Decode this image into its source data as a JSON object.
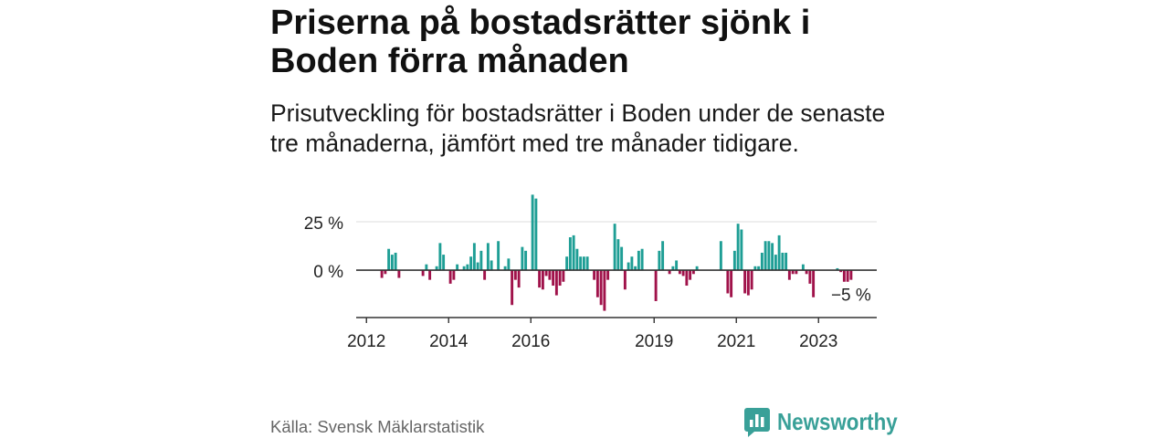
{
  "colors": {
    "positive": "#1e9e95",
    "negative": "#a0124a",
    "logo": "#39a098",
    "grid": "#dddddd",
    "axis": "#333333",
    "muted_text": "#666666"
  },
  "chart_data": {
    "type": "bar",
    "title": "Priserna på bostadsrätter sjönk i Boden förra månaden",
    "subtitle": "Prisutveckling för bostadsrätter i Boden under de senaste tre månaderna, jämfört med tre månader tidigare.",
    "xlabel": "",
    "ylabel": "",
    "x_start": 2012,
    "months_per_bar": 1,
    "xlim": [
      2011.75,
      2024.4167
    ],
    "ylim": [
      -24.5,
      42
    ],
    "grid": true,
    "yticks": [
      {
        "value": 0,
        "label": "0 %"
      },
      {
        "value": 25,
        "label": "25 %"
      }
    ],
    "xticks": [
      {
        "x": 2012,
        "label": "2012"
      },
      {
        "x": 2014,
        "label": "2014"
      },
      {
        "x": 2016,
        "label": "2016"
      },
      {
        "x": 2019,
        "label": "2019"
      },
      {
        "x": 2021,
        "label": "2021"
      },
      {
        "x": 2023,
        "label": "2023"
      }
    ],
    "series": [
      {
        "values": [
          null,
          null,
          null,
          null,
          -4,
          -2,
          11,
          8,
          9,
          -4,
          null,
          null,
          null,
          null,
          null,
          null,
          -3,
          3,
          -5,
          null,
          2,
          14,
          8,
          null,
          -7,
          -5,
          3,
          null,
          2,
          3,
          7,
          14,
          4,
          10,
          -5,
          14,
          5,
          null,
          15,
          null,
          2,
          6,
          -18,
          -5,
          -9,
          12,
          10,
          null,
          39,
          37,
          -9,
          -10,
          -3,
          -5,
          -8,
          -13,
          -8,
          -6,
          7,
          17,
          18,
          11,
          7,
          7,
          7,
          null,
          -5,
          -14,
          -18,
          -21,
          -5,
          null,
          24,
          16,
          12,
          -10,
          4,
          7,
          2,
          10,
          11,
          null,
          null,
          null,
          -16,
          10,
          15,
          null,
          -2,
          2,
          5,
          -2,
          -3,
          -8,
          -5,
          -2,
          2,
          null,
          null,
          null,
          null,
          null,
          null,
          15,
          null,
          -12,
          -14,
          10,
          24,
          21,
          -12,
          -13,
          -10,
          2,
          2,
          9,
          15,
          15,
          14,
          8,
          18,
          9,
          9,
          -5,
          -2,
          -2,
          null,
          3,
          -2,
          -7,
          -14,
          null,
          null,
          null,
          null,
          null,
          null,
          1,
          -1,
          -6,
          -6,
          -5
        ]
      }
    ],
    "annotations": [
      {
        "x": 2023.75,
        "y": -5,
        "label": "−5 %"
      }
    ]
  },
  "source": "Källa: Svensk Mäklarstatistik",
  "logo": {
    "text": "Newsworthy",
    "icon": "newsworthy-logo-icon"
  }
}
